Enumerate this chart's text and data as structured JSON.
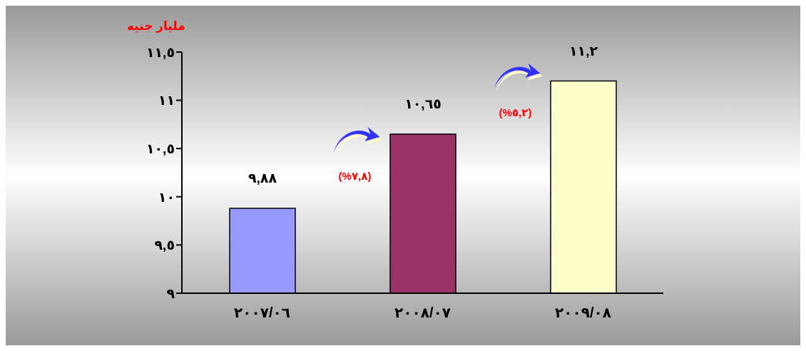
{
  "chart_data": {
    "type": "bar",
    "ylabel": "مليار جنيه",
    "categories": [
      "٢٠٠٧/٠٦",
      "٢٠٠٨/٠٧",
      "٢٠٠٩/٠٨"
    ],
    "values": [
      9.88,
      10.65,
      11.2
    ],
    "colors": [
      "#9999ff",
      "#993366",
      "#ffffcc"
    ],
    "value_labels": [
      "٩,٨٨",
      "١٠,٦٥",
      "١١,٢"
    ],
    "ylim": [
      9,
      11.5
    ],
    "yticks": [
      {
        "value": 9,
        "label": "٩"
      },
      {
        "value": 9.5,
        "label": "٩,٥"
      },
      {
        "value": 10,
        "label": "١٠"
      },
      {
        "value": 10.5,
        "label": "١٠,٥"
      },
      {
        "value": 11,
        "label": "١١"
      },
      {
        "value": 11.5,
        "label": "١١,٥"
      }
    ],
    "annotations": [
      "(%٧,٨)",
      "(%٥,٢)"
    ],
    "grid": false,
    "legend": false
  }
}
